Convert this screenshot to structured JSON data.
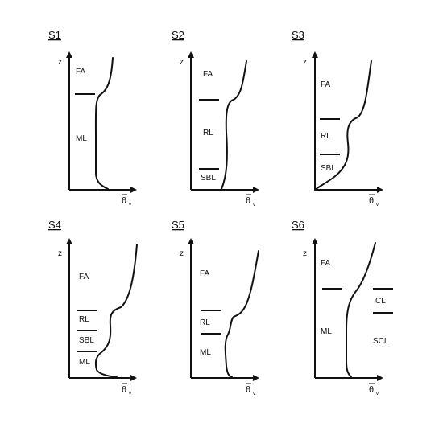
{
  "axis": {
    "y_label": "z",
    "x_label": "θ",
    "x_subscript": "v"
  },
  "panels": [
    {
      "title": "S1",
      "layers": [
        "FA",
        "ML"
      ]
    },
    {
      "title": "S2",
      "layers": [
        "FA",
        "RL",
        "SBL"
      ]
    },
    {
      "title": "S3",
      "layers": [
        "FA",
        "RL",
        "SBL"
      ]
    },
    {
      "title": "S4",
      "layers": [
        "FA",
        "RL",
        "SBL",
        "ML"
      ]
    },
    {
      "title": "S5",
      "layers": [
        "FA",
        "RL",
        "ML"
      ]
    },
    {
      "title": "S6",
      "layers": [
        "FA",
        "ML",
        "CL",
        "SCL"
      ]
    }
  ]
}
